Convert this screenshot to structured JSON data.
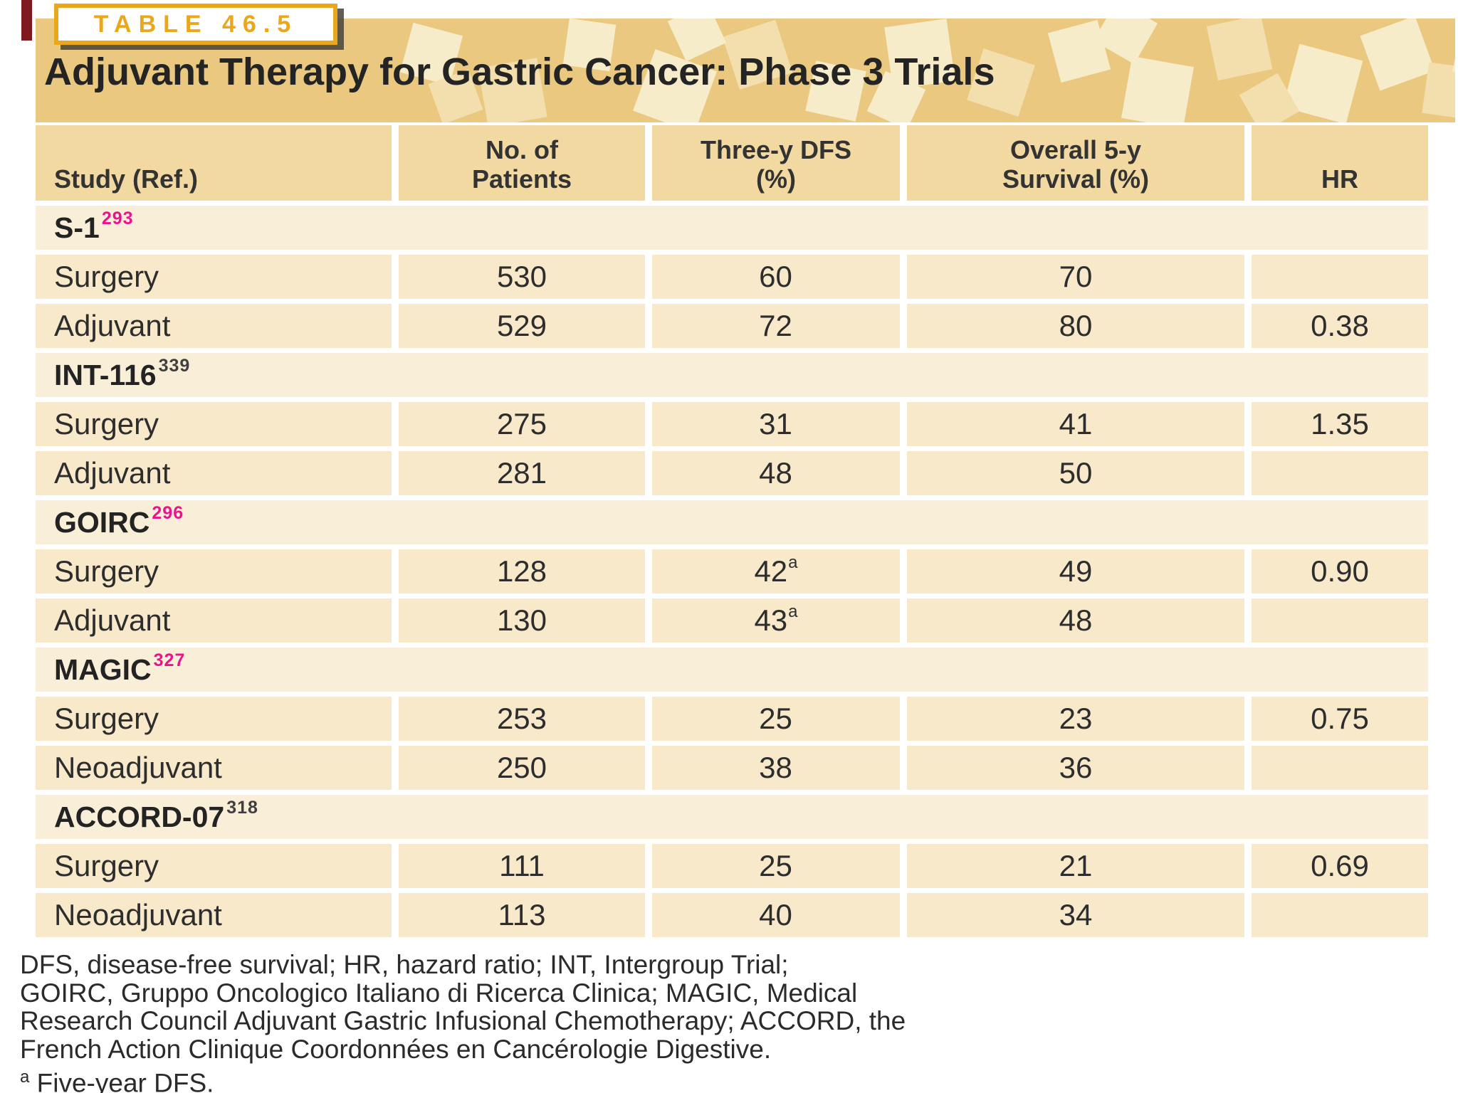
{
  "badge_label": "TABLE 46.5",
  "title": "Adjuvant Therapy for Gastric Cancer: Phase 3 Trials",
  "columns": [
    "Study (Ref.)",
    "No. of Patients",
    "Three-y DFS (%)",
    "Overall 5-y Survival (%)",
    "HR"
  ],
  "groups": [
    {
      "name": "S-1",
      "ref": "293",
      "ref_class": "gsup pink",
      "rows": [
        {
          "label": "Surgery",
          "patients": "530",
          "dfs": "60",
          "dfs_sup": "",
          "survival": "70",
          "hr": ""
        },
        {
          "label": "Adjuvant",
          "patients": "529",
          "dfs": "72",
          "dfs_sup": "",
          "survival": "80",
          "hr": "0.38"
        }
      ]
    },
    {
      "name": "INT-116",
      "ref": "339",
      "ref_class": "gsup dark",
      "rows": [
        {
          "label": "Surgery",
          "patients": "275",
          "dfs": "31",
          "dfs_sup": "",
          "survival": "41",
          "hr": "1.35"
        },
        {
          "label": "Adjuvant",
          "patients": "281",
          "dfs": "48",
          "dfs_sup": "",
          "survival": "50",
          "hr": ""
        }
      ]
    },
    {
      "name": "GOIRC",
      "ref": "296",
      "ref_class": "gsup pink",
      "rows": [
        {
          "label": "Surgery",
          "patients": "128",
          "dfs": "42",
          "dfs_sup": "a",
          "survival": "49",
          "hr": "0.90"
        },
        {
          "label": "Adjuvant",
          "patients": "130",
          "dfs": "43",
          "dfs_sup": "a",
          "survival": "48",
          "hr": ""
        }
      ]
    },
    {
      "name": "MAGIC",
      "ref": "327",
      "ref_class": "gsup pink",
      "rows": [
        {
          "label": "Surgery",
          "patients": "253",
          "dfs": "25",
          "dfs_sup": "",
          "survival": "23",
          "hr": "0.75"
        },
        {
          "label": "Neoadjuvant",
          "patients": "250",
          "dfs": "38",
          "dfs_sup": "",
          "survival": "36",
          "hr": ""
        }
      ]
    },
    {
      "name": "ACCORD-07",
      "ref": "318",
      "ref_class": "gsup dark",
      "rows": [
        {
          "label": "Surgery",
          "patients": "111",
          "dfs": "25",
          "dfs_sup": "",
          "survival": "21",
          "hr": "0.69"
        },
        {
          "label": "Neoadjuvant",
          "patients": "113",
          "dfs": "40",
          "dfs_sup": "",
          "survival": "34",
          "hr": ""
        }
      ]
    }
  ],
  "footnotes": [
    "DFS, disease-free survival; HR, hazard ratio; INT, Intergroup Trial;",
    "GOIRC, Gruppo Oncologico Italiano di Ricerca Clinica; MAGIC, Medical",
    "Research Council Adjuvant Gastric Infusional Chemotherapy; ACCORD, the",
    "French Action Clinique Coordonnées en Cancérologie Digestive."
  ],
  "footnote_marker": {
    "sup": "a",
    "text": "Five-year DFS."
  },
  "colors": {
    "band_gold": "#eac87f",
    "pattern_light": "#f7ecca",
    "pattern_mid": "#f3dfae",
    "header_cell": "#f2d9a2",
    "group_row": "#f9efd8",
    "data_row": "#f7e9ca",
    "badge_gold": "#e9a81c",
    "ref_pink": "#ec128b",
    "accent_red": "#7e1a1f",
    "text_dark": "#242424"
  }
}
